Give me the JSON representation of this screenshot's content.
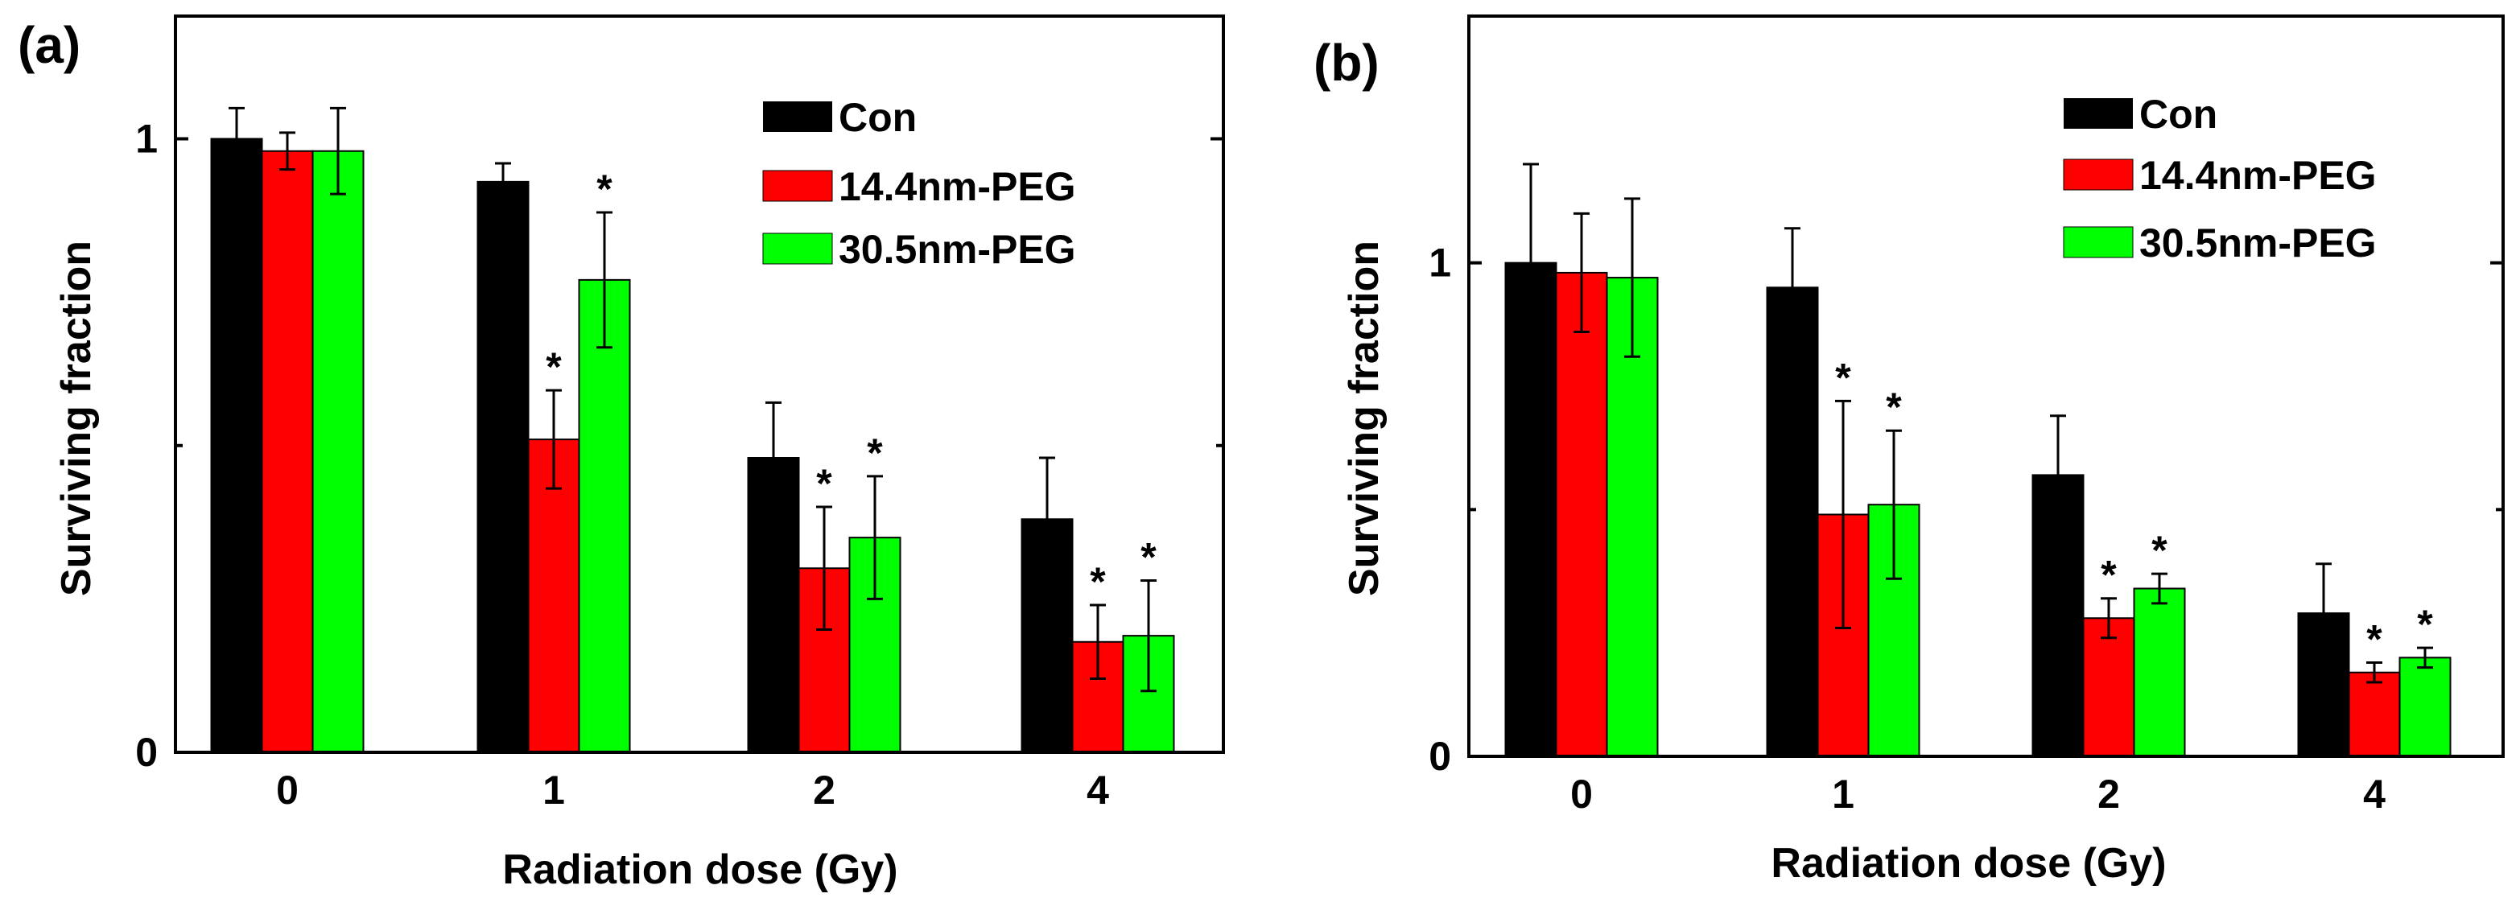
{
  "chart_data": [
    {
      "type": "bar",
      "panel_label": "(a)",
      "xlabel": "Radiation dose (Gy)",
      "ylabel": "Surviving fraction",
      "ylim": [
        0,
        1.2
      ],
      "y_ticks": [
        0,
        1
      ],
      "y_tick_labels": [
        "0",
        "1"
      ],
      "categories": [
        "0",
        "1",
        "2",
        "4"
      ],
      "legend_position": "top-right",
      "series": [
        {
          "name": "Con",
          "color": "#000000",
          "values": [
            1.0,
            0.93,
            0.48,
            0.38
          ],
          "errors": [
            0.05,
            0.03,
            0.09,
            0.1
          ],
          "significant": [
            false,
            false,
            false,
            false
          ]
        },
        {
          "name": "14.4nm-PEG",
          "color": "#ff0000",
          "values": [
            0.98,
            0.51,
            0.3,
            0.18
          ],
          "errors": [
            0.03,
            0.08,
            0.1,
            0.06
          ],
          "significant": [
            false,
            true,
            true,
            true
          ]
        },
        {
          "name": "30.5nm-PEG",
          "color": "#00ff00",
          "values": [
            0.98,
            0.77,
            0.35,
            0.19
          ],
          "errors": [
            0.07,
            0.11,
            0.1,
            0.09
          ],
          "significant": [
            false,
            true,
            true,
            true
          ]
        }
      ],
      "significance_marker": "*"
    },
    {
      "type": "bar",
      "panel_label": "(b)",
      "xlabel": "Radiation dose (Gy)",
      "ylabel": "Surviving fraction",
      "ylim": [
        0,
        1.5
      ],
      "y_ticks": [
        0,
        1
      ],
      "y_tick_labels": [
        "0",
        "1"
      ],
      "categories": [
        "0",
        "1",
        "2",
        "4"
      ],
      "legend_position": "top-right",
      "series": [
        {
          "name": "Con",
          "color": "#000000",
          "values": [
            1.0,
            0.95,
            0.57,
            0.29
          ],
          "errors": [
            0.2,
            0.12,
            0.12,
            0.1
          ],
          "significant": [
            false,
            false,
            false,
            false
          ]
        },
        {
          "name": "14.4nm-PEG",
          "color": "#ff0000",
          "values": [
            0.98,
            0.49,
            0.28,
            0.17
          ],
          "errors": [
            0.12,
            0.23,
            0.04,
            0.02
          ],
          "significant": [
            false,
            true,
            true,
            true
          ]
        },
        {
          "name": "30.5nm-PEG",
          "color": "#00ff00",
          "values": [
            0.97,
            0.51,
            0.34,
            0.2
          ],
          "errors": [
            0.16,
            0.15,
            0.03,
            0.02
          ],
          "significant": [
            false,
            true,
            true,
            true
          ]
        }
      ],
      "significance_marker": "*"
    }
  ]
}
